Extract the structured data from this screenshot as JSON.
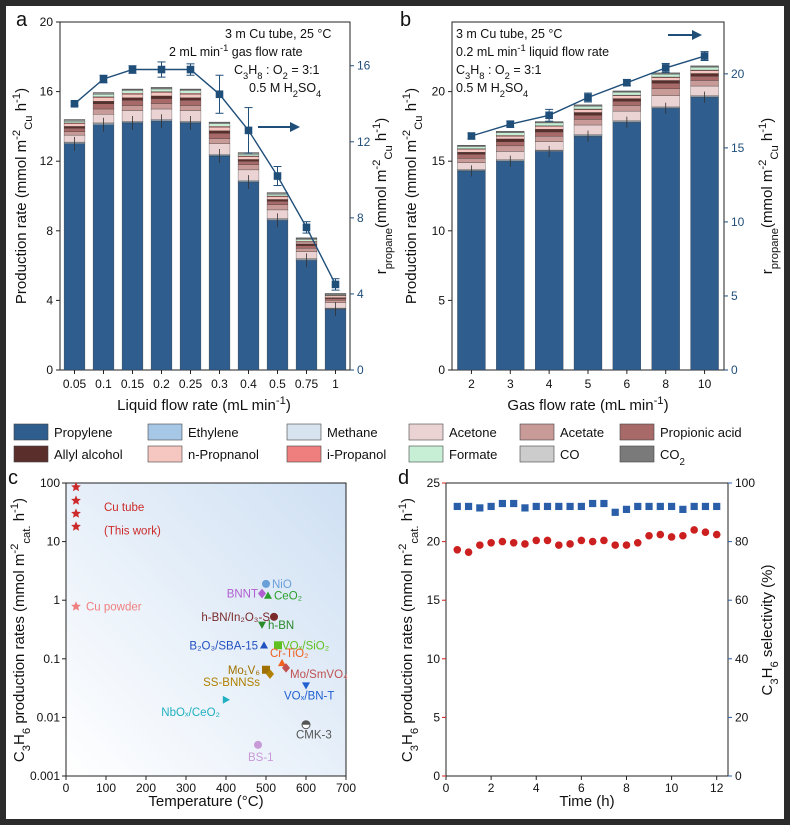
{
  "colors": {
    "Propylene": "#2e5d8e",
    "Ethylene": "#a7c7e7",
    "Methane": "#d7e3ee",
    "Acetone": "#ecd3d3",
    "Acetate": "#c99b98",
    "Propionic acid": "#a86a68",
    "Allyl alcohol": "#5a2f2b",
    "n-Propnanol": "#f6c6c0",
    "i-Propanol": "#ef7e7e",
    "Formate": "#c6efd6",
    "CO": "#cccccc",
    "CO2": "#7a7a7a",
    "red": "#cc1f1f",
    "blue": "#2a5ea8"
  },
  "legend": [
    [
      "Propylene",
      "Ethylene",
      "Methane",
      "Acetone",
      "Acetate",
      "Propionic acid"
    ],
    [
      "Allyl alcohol",
      "n-Propnanol",
      "i-Propanol",
      "Formate",
      "CO",
      "CO2"
    ]
  ],
  "chart_data": [
    {
      "panel": "a",
      "type": "bar",
      "stacked": true,
      "annotation": [
        "3 m Cu tube, 25 °C",
        "2 mL min⁻¹ gas flow rate",
        "C₃H₈ : O₂ = 3:1",
        "0.5 M H₂SO₄"
      ],
      "categories": [
        "0.05",
        "0.1",
        "0.15",
        "0.2",
        "0.25",
        "0.3",
        "0.4",
        "0.5",
        "0.75",
        "1"
      ],
      "xlabel": "Liquid flow rate (mL min⁻¹)",
      "ylabel": "Production rate (mmol m⁻²Cu h⁻¹)",
      "ylim": [
        0,
        20
      ],
      "yticks": [
        0,
        4,
        8,
        12,
        16,
        20
      ],
      "y2label": "r propane (mmol m⁻²Cu h⁻¹)",
      "y2lim": [
        0,
        18.3
      ],
      "y2ticks": [
        0,
        4,
        8,
        12,
        16
      ],
      "series": [
        {
          "name": "Propylene",
          "values": [
            13.0,
            14.1,
            14.2,
            14.3,
            14.2,
            12.3,
            10.8,
            8.6,
            6.3,
            3.5
          ]
        },
        {
          "name": "Ethylene",
          "values": [
            0.05,
            0.05,
            0.05,
            0.05,
            0.05,
            0.05,
            0.05,
            0.05,
            0.05,
            0.03
          ]
        },
        {
          "name": "Methane",
          "values": [
            0.05,
            0.05,
            0.05,
            0.05,
            0.05,
            0.05,
            0.05,
            0.05,
            0.05,
            0.03
          ]
        },
        {
          "name": "Acetone",
          "values": [
            0.4,
            0.5,
            0.6,
            0.6,
            0.6,
            0.6,
            0.6,
            0.5,
            0.4,
            0.3
          ]
        },
        {
          "name": "Acetate",
          "values": [
            0.2,
            0.3,
            0.3,
            0.3,
            0.3,
            0.3,
            0.3,
            0.3,
            0.2,
            0.15
          ]
        },
        {
          "name": "Propionic acid",
          "values": [
            0.2,
            0.3,
            0.3,
            0.3,
            0.3,
            0.3,
            0.2,
            0.2,
            0.15,
            0.1
          ]
        },
        {
          "name": "Allyl alcohol",
          "values": [
            0.1,
            0.15,
            0.15,
            0.15,
            0.15,
            0.15,
            0.1,
            0.1,
            0.1,
            0.05
          ]
        },
        {
          "name": "n-Propnanol",
          "values": [
            0.15,
            0.2,
            0.2,
            0.2,
            0.2,
            0.2,
            0.15,
            0.15,
            0.1,
            0.1
          ]
        },
        {
          "name": "i-Propanol",
          "values": [
            0.05,
            0.05,
            0.05,
            0.05,
            0.05,
            0.05,
            0.05,
            0.05,
            0.05,
            0.03
          ]
        },
        {
          "name": "Formate",
          "values": [
            0.1,
            0.15,
            0.15,
            0.15,
            0.15,
            0.15,
            0.1,
            0.1,
            0.1,
            0.05
          ]
        },
        {
          "name": "CO",
          "values": [
            0.05,
            0.05,
            0.05,
            0.05,
            0.05,
            0.05,
            0.05,
            0.05,
            0.05,
            0.03
          ]
        },
        {
          "name": "CO2",
          "values": [
            0.05,
            0.05,
            0.05,
            0.05,
            0.05,
            0.05,
            0.05,
            0.05,
            0.05,
            0.03
          ]
        }
      ],
      "line": {
        "name": "r propane",
        "axis": "right",
        "values": [
          14.0,
          15.3,
          15.8,
          15.8,
          15.8,
          14.5,
          12.6,
          10.2,
          7.5,
          4.5
        ],
        "errors": [
          0.1,
          0.2,
          0.2,
          0.4,
          0.3,
          1.0,
          1.2,
          0.5,
          0.3,
          0.3
        ]
      },
      "arrow": "right"
    },
    {
      "panel": "b",
      "type": "bar",
      "stacked": true,
      "annotation": [
        "3 m Cu tube, 25 °C",
        "0.2 mL min⁻¹ liquid flow rate",
        "C₃H₈ : O₂ = 3:1",
        "0.5 M H₂SO₄"
      ],
      "categories": [
        "2",
        "3",
        "4",
        "5",
        "6",
        "8",
        "10"
      ],
      "xlabel": "Gas flow rate (mL min⁻¹)",
      "ylabel": "Production rate (mmol m⁻²Cu h⁻¹)",
      "ylim": [
        0,
        25
      ],
      "yticks": [
        0,
        5,
        10,
        15,
        20
      ],
      "y2label": "r propane (mmol m⁻²Cu h⁻¹)",
      "y2lim": [
        0,
        23.5
      ],
      "y2ticks": [
        0,
        5,
        10,
        15,
        20
      ],
      "series": [
        {
          "name": "Propylene",
          "values": [
            14.3,
            15.0,
            15.7,
            16.8,
            17.8,
            18.8,
            19.6
          ]
        },
        {
          "name": "Ethylene",
          "values": [
            0.05,
            0.05,
            0.05,
            0.05,
            0.05,
            0.05,
            0.05
          ]
        },
        {
          "name": "Methane",
          "values": [
            0.05,
            0.05,
            0.05,
            0.05,
            0.05,
            0.05,
            0.05
          ]
        },
        {
          "name": "Acetone",
          "values": [
            0.5,
            0.6,
            0.6,
            0.7,
            0.7,
            0.8,
            0.7
          ]
        },
        {
          "name": "Acetate",
          "values": [
            0.3,
            0.4,
            0.4,
            0.4,
            0.4,
            0.5,
            0.4
          ]
        },
        {
          "name": "Propionic acid",
          "values": [
            0.3,
            0.3,
            0.3,
            0.3,
            0.3,
            0.4,
            0.3
          ]
        },
        {
          "name": "Allyl alcohol",
          "values": [
            0.15,
            0.2,
            0.2,
            0.2,
            0.2,
            0.2,
            0.2
          ]
        },
        {
          "name": "n-Propnanol",
          "values": [
            0.2,
            0.2,
            0.2,
            0.2,
            0.2,
            0.2,
            0.2
          ]
        },
        {
          "name": "i-Propanol",
          "values": [
            0.05,
            0.05,
            0.05,
            0.05,
            0.05,
            0.05,
            0.05
          ]
        },
        {
          "name": "Formate",
          "values": [
            0.15,
            0.2,
            0.2,
            0.2,
            0.2,
            0.2,
            0.2
          ]
        },
        {
          "name": "CO",
          "values": [
            0.05,
            0.05,
            0.05,
            0.05,
            0.05,
            0.05,
            0.05
          ]
        },
        {
          "name": "CO2",
          "values": [
            0.05,
            0.05,
            0.05,
            0.05,
            0.05,
            0.05,
            0.05
          ]
        }
      ],
      "line": {
        "name": "r propane",
        "axis": "right",
        "values": [
          15.8,
          16.6,
          17.2,
          18.4,
          19.4,
          20.4,
          21.2
        ],
        "errors": [
          0.2,
          0.2,
          0.4,
          0.3,
          0.2,
          0.3,
          0.3
        ]
      },
      "arrow": "right"
    },
    {
      "panel": "c",
      "type": "scatter",
      "xlabel": "Temperature (°C)",
      "ylabel": "C₃H₆ production rates (mmol m⁻²cat. h⁻¹)",
      "xlim": [
        0,
        700
      ],
      "xticks": [
        0,
        100,
        200,
        300,
        400,
        500,
        600,
        700
      ],
      "ylim": [
        0.001,
        100
      ],
      "yscale": "log",
      "yticks": [
        "0.001",
        "0.01",
        "0.1",
        "1",
        "10",
        "100"
      ],
      "points": [
        {
          "label": "Cu tube",
          "x": 25,
          "y": 85,
          "color": "#cc2a2a",
          "marker": "star"
        },
        {
          "label": "",
          "x": 25,
          "y": 50,
          "color": "#cc2a2a",
          "marker": "star"
        },
        {
          "label": "",
          "x": 25,
          "y": 30,
          "color": "#cc2a2a",
          "marker": "star"
        },
        {
          "label": "",
          "x": 25,
          "y": 18,
          "color": "#cc2a2a",
          "marker": "star"
        },
        {
          "label": "Cu powder",
          "x": 25,
          "y": 0.78,
          "color": "#f08080",
          "marker": "star"
        },
        {
          "label": "NiO",
          "x": 500,
          "y": 1.9,
          "color": "#6aa0d8",
          "marker": "circle"
        },
        {
          "label": "BNNT",
          "x": 490,
          "y": 1.3,
          "color": "#b060d0",
          "marker": "diamond"
        },
        {
          "label": "CeO₂",
          "x": 505,
          "y": 1.2,
          "color": "#2ca02c",
          "marker": "triangle"
        },
        {
          "label": "h-BN/In₂O₃-S",
          "x": 520,
          "y": 0.52,
          "color": "#7a2a2a",
          "marker": "circle"
        },
        {
          "label": "h-BN",
          "x": 490,
          "y": 0.38,
          "color": "#2a8a2a",
          "marker": "triangle-down"
        },
        {
          "label": "B₂O₃/SBA-15",
          "x": 495,
          "y": 0.17,
          "color": "#2050c0",
          "marker": "triangle"
        },
        {
          "label": "VOₓ/SiO₂",
          "x": 530,
          "y": 0.17,
          "color": "#60c020",
          "marker": "square"
        },
        {
          "label": "Cr-TiO₂",
          "x": 540,
          "y": 0.085,
          "color": "#f06020",
          "marker": "triangle"
        },
        {
          "label": "Mo₁V₆",
          "x": 500,
          "y": 0.065,
          "color": "#a07000",
          "marker": "square"
        },
        {
          "label": "Mo/SmVO₄",
          "x": 550,
          "y": 0.07,
          "color": "#c05050",
          "marker": "diamond"
        },
        {
          "label": "SS-BNNSs",
          "x": 510,
          "y": 0.055,
          "color": "#b08000",
          "marker": "diamond"
        },
        {
          "label": "VOₓ/BN-T",
          "x": 600,
          "y": 0.035,
          "color": "#2060d0",
          "marker": "triangle-down"
        },
        {
          "label": "NbOₓ/CeO₂",
          "x": 400,
          "y": 0.02,
          "color": "#20b0c0",
          "marker": "triangle-right"
        },
        {
          "label": "CMK-3",
          "x": 600,
          "y": 0.0075,
          "color": "#555555",
          "marker": "half-circle"
        },
        {
          "label": "BS-1",
          "x": 480,
          "y": 0.0034,
          "color": "#c89ad8",
          "marker": "circle"
        }
      ],
      "annotation": "(This work)"
    },
    {
      "panel": "d",
      "type": "scatter",
      "xlabel": "Time (h)",
      "xlim": [
        0,
        12.5
      ],
      "xticks": [
        0,
        2,
        4,
        6,
        8,
        10,
        12
      ],
      "ylabel": "C₃H₆ production rates (mmol m⁻²cat. h⁻¹)",
      "ylim": [
        0,
        25
      ],
      "yticks": [
        0,
        5,
        10,
        15,
        20,
        25
      ],
      "y2label": "C₃H₆ selectivity (%)",
      "y2lim": [
        0,
        100
      ],
      "y2ticks": [
        0,
        20,
        40,
        60,
        80,
        100
      ],
      "x": [
        0.5,
        1.0,
        1.5,
        2.0,
        2.5,
        3.0,
        3.5,
        4.0,
        4.5,
        5.0,
        5.5,
        6.0,
        6.5,
        7.0,
        7.5,
        8.0,
        8.5,
        9.0,
        9.5,
        10.0,
        10.5,
        11.0,
        11.5,
        12.0
      ],
      "series": [
        {
          "name": "C₃H₆ production rates",
          "axis": "left",
          "marker": "circle",
          "values": [
            19.3,
            19.1,
            19.7,
            19.9,
            20.0,
            19.9,
            19.8,
            20.1,
            20.1,
            19.7,
            19.8,
            20.1,
            20.0,
            20.1,
            19.7,
            19.7,
            19.9,
            20.5,
            20.6,
            20.4,
            20.5,
            21.0,
            20.8,
            20.6
          ]
        },
        {
          "name": "C₃H₆ selectivity",
          "axis": "right",
          "marker": "square",
          "values": [
            92,
            92,
            91.5,
            92,
            93,
            93,
            91.5,
            92,
            92,
            92,
            92,
            92,
            93,
            93,
            90,
            91,
            92,
            92,
            92,
            92,
            91,
            92,
            92,
            92
          ]
        }
      ]
    }
  ]
}
